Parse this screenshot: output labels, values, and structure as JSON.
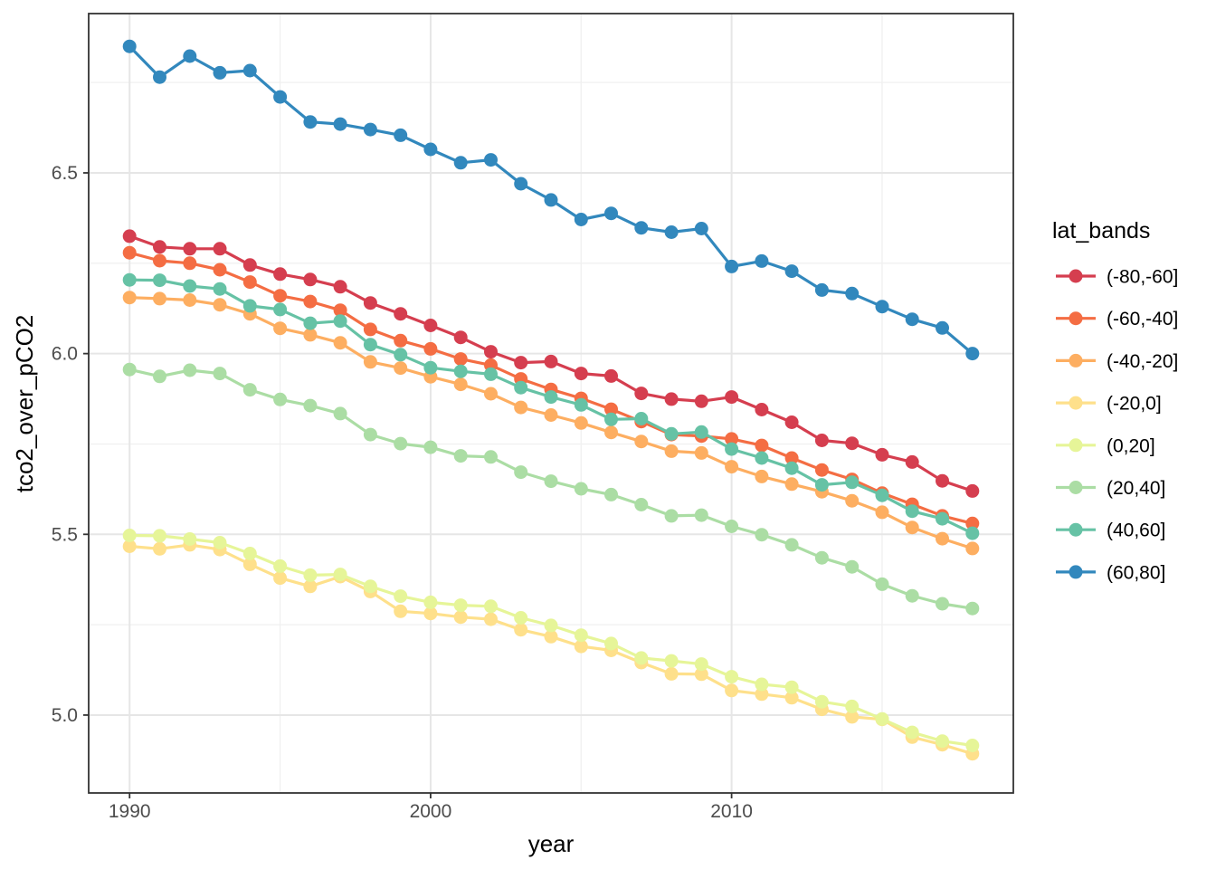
{
  "figure": {
    "background": "#ffffff",
    "panel": {
      "border_color": "#333333",
      "background": "#ffffff",
      "grid_major_color": "#e6e6e6",
      "grid_minor_color": "#f0f0f0",
      "tick_color": "#333333",
      "tick_label_color": "#4d4d4d"
    }
  },
  "chart_data": {
    "type": "line",
    "title": "",
    "xlabel": "year",
    "ylabel": "tco2_over_pCO2",
    "legend_title": "lat_bands",
    "legend_position": "right",
    "grid": true,
    "xlim": [
      1988.64,
      2019.36
    ],
    "ylim": [
      4.7845,
      6.9407
    ],
    "x_ticks": [
      1990,
      2000,
      2010
    ],
    "x_tick_labels": [
      "1990",
      "2000",
      "2010"
    ],
    "x_minor_ticks": [
      1995,
      2005,
      2015
    ],
    "y_ticks": [
      5.0,
      5.5,
      6.0,
      6.5
    ],
    "y_tick_labels": [
      "5.0",
      "5.5",
      "6.0",
      "6.5"
    ],
    "y_minor_ticks": [
      5.25,
      5.75,
      6.25,
      6.75
    ],
    "x": [
      1990,
      1991,
      1992,
      1993,
      1994,
      1995,
      1996,
      1997,
      1998,
      1999,
      2000,
      2001,
      2002,
      2003,
      2004,
      2005,
      2006,
      2007,
      2008,
      2009,
      2010,
      2011,
      2012,
      2013,
      2014,
      2015,
      2016,
      2017,
      2018
    ],
    "series": [
      {
        "name": "(-80,-60]",
        "color": "#d53e4f",
        "values": [
          6.325,
          6.295,
          6.29,
          6.29,
          6.245,
          6.22,
          6.205,
          6.185,
          6.14,
          6.11,
          6.078,
          6.045,
          6.005,
          5.975,
          5.978,
          5.945,
          5.938,
          5.89,
          5.874,
          5.868,
          5.88,
          5.845,
          5.81,
          5.76,
          5.752,
          5.72,
          5.7,
          5.648,
          5.62
        ]
      },
      {
        "name": "(-60,-40]",
        "color": "#f46d43",
        "values": [
          6.279,
          6.257,
          6.25,
          6.232,
          6.198,
          6.16,
          6.144,
          6.12,
          6.067,
          6.036,
          6.013,
          5.985,
          5.968,
          5.93,
          5.901,
          5.876,
          5.846,
          5.812,
          5.776,
          5.772,
          5.764,
          5.746,
          5.711,
          5.678,
          5.652,
          5.614,
          5.583,
          5.551,
          5.53
        ]
      },
      {
        "name": "(-40,-20]",
        "color": "#fdae61",
        "values": [
          6.155,
          6.152,
          6.148,
          6.135,
          6.11,
          6.07,
          6.052,
          6.03,
          5.977,
          5.96,
          5.936,
          5.915,
          5.889,
          5.851,
          5.83,
          5.808,
          5.782,
          5.757,
          5.73,
          5.725,
          5.687,
          5.66,
          5.639,
          5.618,
          5.593,
          5.561,
          5.519,
          5.488,
          5.461
        ]
      },
      {
        "name": "(-20,0]",
        "color": "#fee08b",
        "values": [
          5.467,
          5.46,
          5.471,
          5.458,
          5.417,
          5.379,
          5.356,
          5.383,
          5.342,
          5.287,
          5.281,
          5.271,
          5.265,
          5.236,
          5.217,
          5.19,
          5.179,
          5.145,
          5.114,
          5.113,
          5.068,
          5.058,
          5.048,
          5.016,
          4.995,
          4.988,
          4.939,
          4.918,
          4.893
        ]
      },
      {
        "name": "(0,20]",
        "color": "#e6f598",
        "values": [
          5.497,
          5.496,
          5.487,
          5.477,
          5.447,
          5.412,
          5.387,
          5.389,
          5.356,
          5.329,
          5.312,
          5.304,
          5.301,
          5.269,
          5.248,
          5.221,
          5.198,
          5.158,
          5.15,
          5.141,
          5.106,
          5.085,
          5.077,
          5.037,
          5.024,
          4.989,
          4.952,
          4.928,
          4.916
        ]
      },
      {
        "name": "(20,40]",
        "color": "#abdda4",
        "values": [
          5.956,
          5.937,
          5.954,
          5.945,
          5.9,
          5.873,
          5.856,
          5.834,
          5.776,
          5.751,
          5.741,
          5.717,
          5.714,
          5.672,
          5.647,
          5.626,
          5.61,
          5.582,
          5.551,
          5.553,
          5.522,
          5.499,
          5.471,
          5.435,
          5.41,
          5.362,
          5.33,
          5.308,
          5.295
        ]
      },
      {
        "name": "(40,60]",
        "color": "#66c2a5",
        "values": [
          6.204,
          6.203,
          6.187,
          6.179,
          6.132,
          6.122,
          6.084,
          6.09,
          6.025,
          5.997,
          5.961,
          5.951,
          5.943,
          5.906,
          5.88,
          5.858,
          5.818,
          5.82,
          5.778,
          5.783,
          5.736,
          5.711,
          5.683,
          5.637,
          5.644,
          5.608,
          5.564,
          5.543,
          5.503
        ]
      },
      {
        "name": "(60,80]",
        "color": "#3288bd",
        "values": [
          6.85,
          6.765,
          6.823,
          6.777,
          6.783,
          6.71,
          6.641,
          6.635,
          6.62,
          6.604,
          6.565,
          6.528,
          6.536,
          6.47,
          6.425,
          6.371,
          6.388,
          6.348,
          6.336,
          6.346,
          6.241,
          6.256,
          6.228,
          6.176,
          6.166,
          6.13,
          6.095,
          6.071,
          6.0
        ]
      }
    ]
  }
}
